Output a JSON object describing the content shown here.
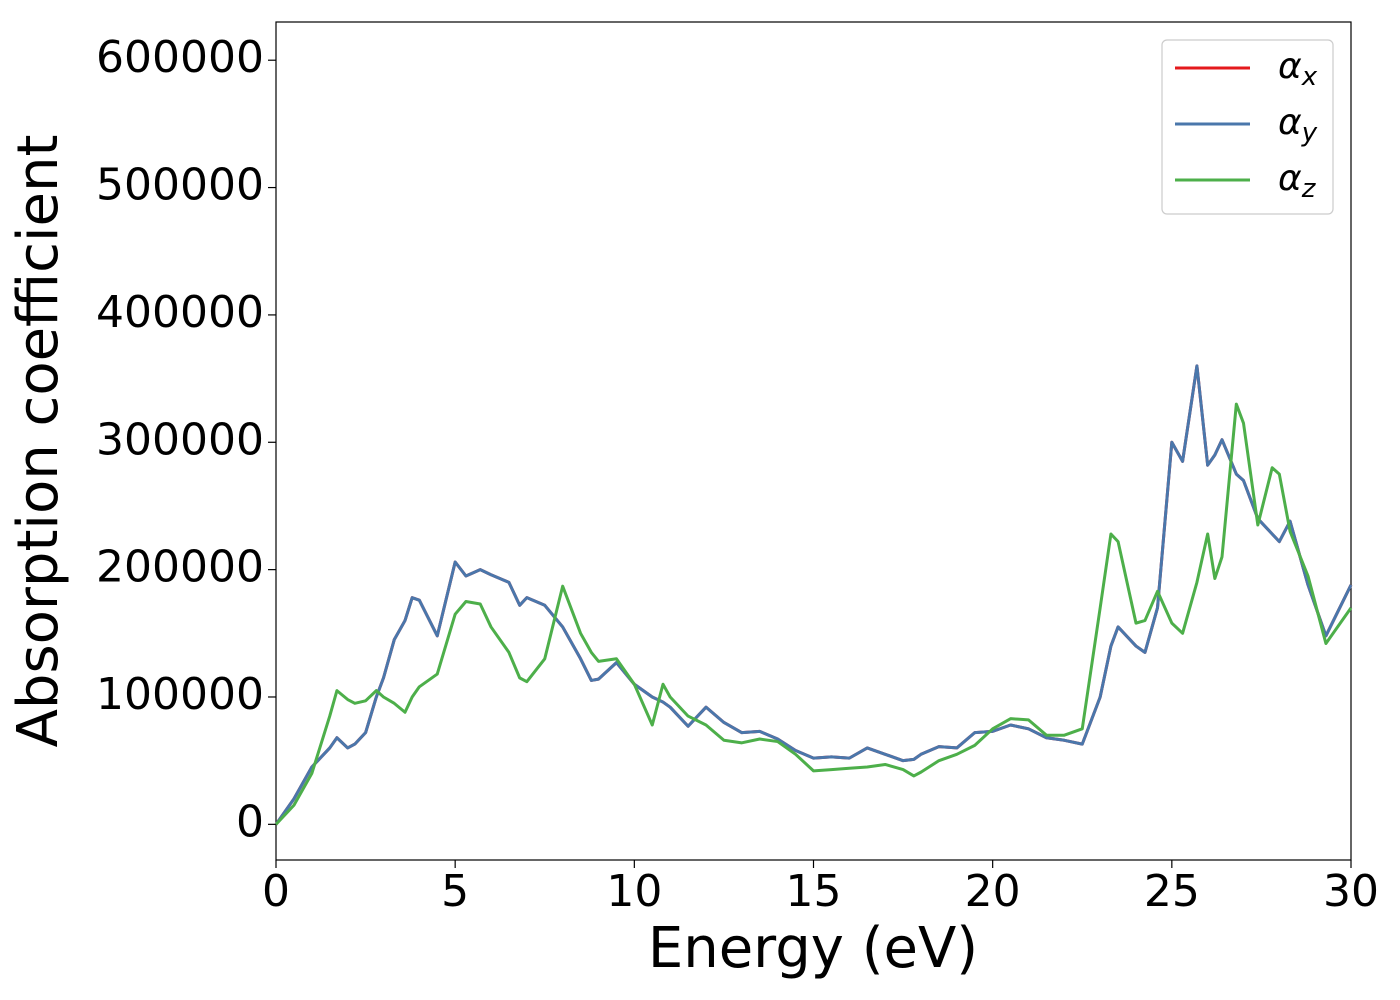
{
  "chart_data": {
    "type": "line",
    "xlabel": "Energy (eV)",
    "ylabel": "Absorption coefficient",
    "x": [
      0,
      0.5,
      1,
      1.5,
      1.7,
      2,
      2.2,
      2.5,
      2.8,
      3,
      3.3,
      3.6,
      3.8,
      4,
      4.5,
      5,
      5.3,
      5.7,
      6,
      6.5,
      6.8,
      7,
      7.5,
      8,
      8.5,
      8.8,
      9,
      9.5,
      10,
      10.5,
      10.8,
      11,
      11.5,
      12,
      12.5,
      13,
      13.5,
      14,
      14.5,
      15,
      15.5,
      16,
      16.5,
      17,
      17.5,
      17.8,
      18,
      18.5,
      19,
      19.5,
      20,
      20.5,
      21,
      21.5,
      22,
      22.5,
      23,
      23.3,
      23.5,
      24,
      24.25,
      24.6,
      25,
      25.3,
      25.7,
      26,
      26.2,
      26.4,
      26.8,
      27,
      27.4,
      27.8,
      28,
      28.3,
      28.8,
      29.3,
      30
    ],
    "series": [
      {
        "name": "αx",
        "color": "#e41a1c",
        "values": [
          0,
          20000,
          45000,
          60000,
          68000,
          60000,
          63000,
          72000,
          100000,
          115000,
          145000,
          160000,
          178000,
          176000,
          148000,
          206000,
          195000,
          200000,
          196000,
          190000,
          172000,
          178000,
          172000,
          155000,
          130000,
          113000,
          114000,
          127000,
          110000,
          100000,
          96000,
          92000,
          77000,
          92000,
          80000,
          72000,
          73000,
          67000,
          58000,
          52000,
          53000,
          52000,
          60000,
          55000,
          50000,
          51000,
          55000,
          61000,
          60000,
          72000,
          73000,
          78000,
          75000,
          68000,
          66000,
          63000,
          100000,
          140000,
          155000,
          140000,
          135000,
          170000,
          300000,
          285000,
          360000,
          282000,
          290000,
          302000,
          275000,
          270000,
          240000,
          228000,
          222000,
          238000,
          188000,
          148000,
          188000
        ]
      },
      {
        "name": "αy",
        "color": "#4a77ab",
        "values": [
          0,
          20000,
          45000,
          60000,
          68000,
          60000,
          63000,
          72000,
          100000,
          115000,
          145000,
          160000,
          178000,
          176000,
          148000,
          206000,
          195000,
          200000,
          196000,
          190000,
          172000,
          178000,
          172000,
          155000,
          130000,
          113000,
          114000,
          127000,
          110000,
          100000,
          96000,
          92000,
          77000,
          92000,
          80000,
          72000,
          73000,
          67000,
          58000,
          52000,
          53000,
          52000,
          60000,
          55000,
          50000,
          51000,
          55000,
          61000,
          60000,
          72000,
          73000,
          78000,
          75000,
          68000,
          66000,
          63000,
          100000,
          140000,
          155000,
          140000,
          135000,
          170000,
          300000,
          285000,
          360000,
          282000,
          290000,
          302000,
          275000,
          270000,
          240000,
          228000,
          222000,
          238000,
          188000,
          148000,
          188000
        ]
      },
      {
        "name": "αz",
        "color": "#4daf4a",
        "values": [
          0,
          15000,
          40000,
          85000,
          105000,
          98000,
          95000,
          97000,
          105000,
          100000,
          95000,
          88000,
          100000,
          108000,
          118000,
          165000,
          175000,
          173000,
          155000,
          135000,
          115000,
          112000,
          130000,
          187000,
          150000,
          135000,
          128000,
          130000,
          110000,
          78000,
          110000,
          100000,
          85000,
          78000,
          66000,
          64000,
          67000,
          65000,
          55000,
          42000,
          43000,
          44000,
          45000,
          47000,
          43000,
          38000,
          41000,
          50000,
          55000,
          62000,
          75000,
          83000,
          82000,
          70000,
          70000,
          75000,
          170000,
          228000,
          222000,
          158000,
          160000,
          183000,
          158000,
          150000,
          190000,
          228000,
          193000,
          210000,
          330000,
          315000,
          235000,
          280000,
          275000,
          230000,
          195000,
          142000,
          170000
        ]
      }
    ],
    "xlim": [
      0,
      30
    ],
    "xticks": [
      0,
      5,
      10,
      15,
      20,
      25,
      30
    ],
    "ylim": [
      -28000,
      630000
    ],
    "yticks": [
      0,
      100000,
      200000,
      300000,
      400000,
      500000,
      600000
    ],
    "grid": false,
    "legend": "upper right"
  }
}
